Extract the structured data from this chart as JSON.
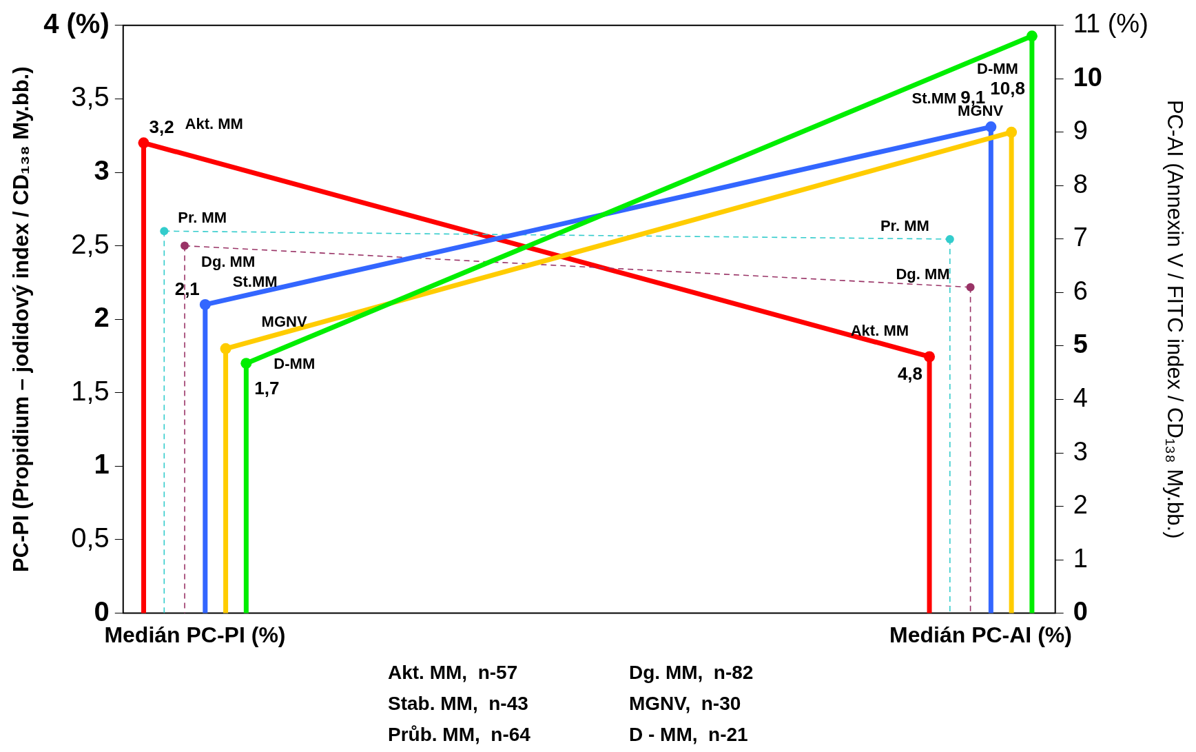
{
  "chart_data": {
    "type": "lollipop",
    "categories": [
      "Medián PC-PI (%)",
      "Medián PC-AI (%)"
    ],
    "ylabel": "PC-PI (Propidium – jodidový index / CD₁₃₈ My.bb.)",
    "y2label": "PC-AI (Annexin V / FITC index / CD₁₃₈ My.bb.)",
    "ylim": [
      0,
      4
    ],
    "yticks": [
      0,
      {
        "value": 0.5,
        "label": "0,5"
      },
      1,
      {
        "value": 1.5,
        "label": "1,5"
      },
      2,
      {
        "value": 2.5,
        "label": "2,5"
      },
      3,
      {
        "value": 3.5,
        "label": "3,5"
      },
      {
        "value": 4,
        "label": "4 (%)"
      }
    ],
    "y2lim": [
      0,
      11
    ],
    "y2ticks": [
      0,
      1,
      2,
      3,
      4,
      5,
      6,
      7,
      8,
      9,
      10,
      {
        "value": 11,
        "label": "11 (%)"
      }
    ],
    "grid": false,
    "legend": false,
    "marker": "circle",
    "series": [
      {
        "name": "Akt. MM",
        "color": "#ff0000",
        "values": [
          3.2,
          null
        ],
        "value_labels": [
          "3,2",
          null
        ]
      },
      {
        "name": "Akt. MM",
        "color": "#ff0000",
        "axis": "y2",
        "values": [
          null,
          4.8
        ],
        "value_labels": [
          null,
          "4,8"
        ]
      },
      {
        "name": "Pr. MM",
        "color": "#33cccc",
        "line_style": "dashed",
        "values": [
          2.6,
          null
        ]
      },
      {
        "name": "Pr. MM",
        "color": "#33cccc",
        "line_style": "dashed",
        "axis": "y2",
        "values": [
          null,
          7.0
        ]
      },
      {
        "name": "Dg. MM",
        "color": "#993366",
        "line_style": "dashed",
        "values": [
          2.5,
          null
        ]
      },
      {
        "name": "Dg. MM",
        "color": "#993366",
        "line_style": "dashed",
        "axis": "y2",
        "values": [
          null,
          6.1
        ]
      },
      {
        "name": "St.MM",
        "color": "#3366ff",
        "values": [
          2.1,
          null
        ],
        "value_labels": [
          "2,1",
          null
        ]
      },
      {
        "name": "St.MM",
        "color": "#3366ff",
        "axis": "y2",
        "values": [
          null,
          9.1
        ],
        "value_labels": [
          null,
          "9,1"
        ]
      },
      {
        "name": "MGNV",
        "color": "#ffcc00",
        "values": [
          1.8,
          null
        ]
      },
      {
        "name": "MGNV",
        "color": "#ffcc00",
        "axis": "y2",
        "values": [
          null,
          9.0
        ]
      },
      {
        "name": "D-MM",
        "color": "#00ee00",
        "values": [
          1.7,
          null
        ],
        "value_labels": [
          "1,7",
          null
        ]
      },
      {
        "name": "D-MM",
        "color": "#00ee00",
        "axis": "y2",
        "values": [
          null,
          10.8
        ],
        "value_labels": [
          null,
          "10,8"
        ]
      }
    ],
    "annotations": [
      "Akt. MM,  n-57",
      "Stab. MM,  n-43",
      "Průb. MM,  n-64",
      "Dg. MM,  n-82",
      "MGNV,  n-30",
      "D - MM,  n-21"
    ]
  }
}
